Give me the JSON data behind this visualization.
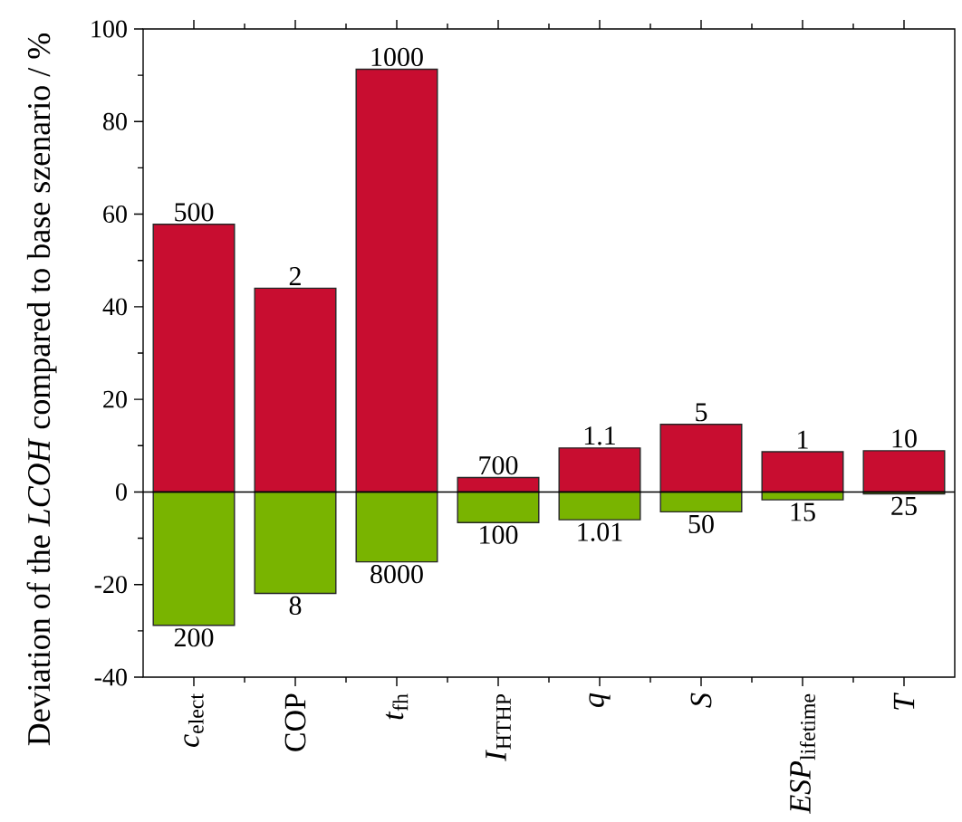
{
  "chart_data": {
    "type": "bar",
    "ylabel": "Deviation of the *LCOH* compared to base szenario / %",
    "categories": [
      "*c*$_{elect}$",
      "COP",
      "*t*$_{fh}$",
      "*I*$_{HTHP}$",
      "*q*",
      "*S*",
      "*ESP*$_{lifetime}$",
      "*T*"
    ],
    "stacked": true,
    "series": [
      {
        "color": "#c80d30",
        "values": [
          57.8,
          44,
          91.3,
          3.1,
          9.5,
          14.6,
          8.7,
          8.9
        ]
      },
      {
        "color": "#79b400",
        "values": [
          -28.8,
          -21.9,
          -15.1,
          -6.6,
          -6.0,
          -4.3,
          -1.7,
          -0.4
        ]
      }
    ],
    "ylim": [
      -40,
      100
    ],
    "yticks": [
      -40,
      -20,
      0,
      20,
      40,
      60,
      80,
      100
    ],
    "ref_lines": [
      {
        "axis": "y",
        "value": 0,
        "color": "#000000"
      }
    ],
    "annotations": [
      {
        "text": "500",
        "x": "*c*$_{elect}$",
        "y": 57.8
      },
      {
        "text": "2",
        "x": "COP",
        "y": 44
      },
      {
        "text": "1000",
        "x": "*t*$_{fh}$",
        "y": 91.3
      },
      {
        "text": "700",
        "x": "*I*$_{HTHP}$",
        "y": 3.1
      },
      {
        "text": "1.1",
        "x": "*q*",
        "y": 9.5
      },
      {
        "text": "5",
        "x": "*S*",
        "y": 14.6
      },
      {
        "text": "1",
        "x": "*ESP*$_{lifetime}$",
        "y": 8.7
      },
      {
        "text": "10",
        "x": "*T*",
        "y": 8.9
      },
      {
        "text": "200",
        "x": "*c*$_{elect}$",
        "y": -28.8
      },
      {
        "text": "8",
        "x": "COP",
        "y": -21.9
      },
      {
        "text": "8000",
        "x": "*t*$_{fh}$",
        "y": -15.1
      },
      {
        "text": "100",
        "x": "*I*$_{HTHP}$",
        "y": -6.6
      },
      {
        "text": "1.01",
        "x": "*q*",
        "y": -6.0
      },
      {
        "text": "50",
        "x": "*S*",
        "y": -4.3
      },
      {
        "text": "15",
        "x": "*ESP*$_{lifetime}$",
        "y": -1.7
      },
      {
        "text": "25",
        "x": "*T*",
        "y": -0.4
      }
    ]
  }
}
